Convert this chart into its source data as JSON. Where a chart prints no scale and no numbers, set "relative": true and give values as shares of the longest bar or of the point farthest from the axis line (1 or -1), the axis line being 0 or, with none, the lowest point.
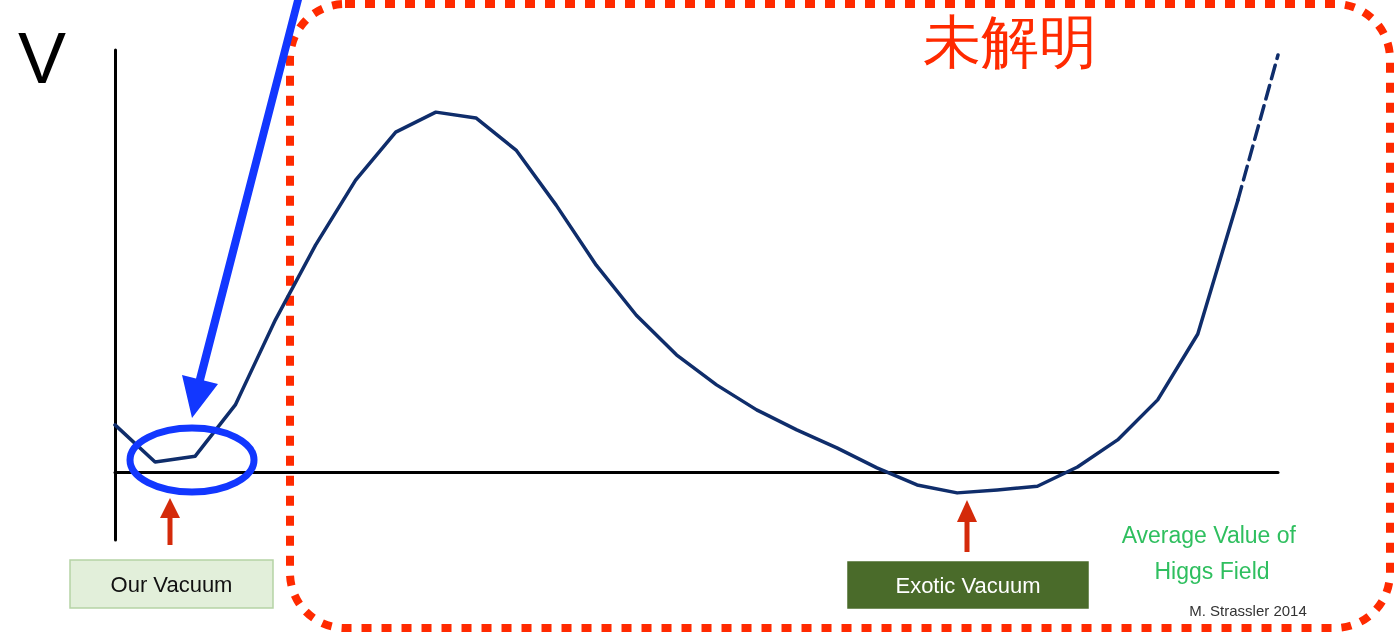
{
  "chart_data": {
    "type": "line",
    "relative": true,
    "title": "未解明",
    "ylabel": "V",
    "xlabel": "Average Value of Higgs Field",
    "categories": [
      null,
      null,
      null,
      null,
      null,
      null,
      null,
      null,
      null,
      null,
      null,
      null,
      null,
      null,
      null,
      null,
      null,
      null,
      null,
      null,
      null,
      null,
      null,
      null,
      null,
      null,
      null,
      null,
      null,
      null
    ],
    "series": [
      {
        "color": "#0f2d6b",
        "line_style": "solid",
        "values": [
          0.113,
          0.024,
          0.038,
          0.161,
          0.365,
          0.544,
          0.7,
          0.815,
          0.863,
          0.849,
          0.772,
          0.64,
          0.496,
          0.376,
          0.281,
          0.209,
          0.149,
          0.101,
          0.058,
          0.01,
          -0.031,
          -0.05,
          -0.043,
          -0.034,
          0.012,
          0.077,
          0.173,
          0.331,
          0.652,
          null
        ]
      },
      {
        "color": "#0f2d6b",
        "line_style": "dashed",
        "values": [
          null,
          null,
          null,
          null,
          null,
          null,
          null,
          null,
          null,
          null,
          null,
          null,
          null,
          null,
          null,
          null,
          null,
          null,
          null,
          null,
          null,
          null,
          null,
          null,
          null,
          null,
          null,
          null,
          0.652,
          1
        ]
      }
    ],
    "marker": "none",
    "grid": false,
    "annotations": [
      "Our Vacuum",
      "Exotic Vacuum",
      "M. Strassler 2014"
    ]
  }
}
